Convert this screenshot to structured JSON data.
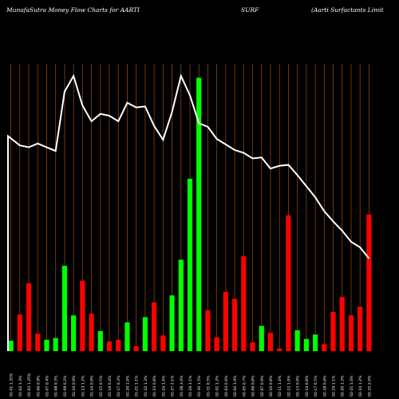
{
  "header": {
    "title_left": "MunafaSutra  Money Flow  Charts for AARTI",
    "title_mid": "SURF",
    "title_right": "(Aarti   Surfactants Limit"
  },
  "colors": {
    "background": "#000000",
    "grid": "#8B4513",
    "up": "#00FF00",
    "down": "#FF0000",
    "price_line": "#FFFFFF",
    "label": "#FFFFFF"
  },
  "chart_data": {
    "type": "bar",
    "title": "MunafaSutra Money Flow Charts for AARTI SURF (Aarti Surfactants Limit",
    "categories": [
      "01-01 1.35%",
      "01-02 1.3%",
      "01-03 1.25%",
      "01-06 0.9%",
      "01-07 0.4%",
      "01-08 0.3%",
      "01-09 0.2%",
      "01-10 0.9%",
      "01-13 1.2%",
      "01-14 0.9%",
      "01-15 0.5%",
      "01-16 0.4%",
      "01-17 0.3%",
      "01-20 1.0%",
      "01-21 1.1%",
      "01-22 1.3%",
      "01-23 0.8%",
      "01-24 1.4%",
      "01-27 2.1%",
      "01-28 3.0%",
      "01-29 3.1%",
      "01-30 1.5%",
      "01-31 0.5%",
      "02-01 1.2%",
      "02-03 0.6%",
      "02-04 1.0%",
      "02-05 0.7%",
      "02-06 0.8%",
      "02-07 0.9%",
      "02-10 0.8%",
      "02-11 1.4%",
      "02-12 1.0%",
      "02-13 0.9%",
      "02-14 0.8%",
      "02-17 0.5%",
      "02-18 0.6%",
      "02-19 1.1%",
      "02-20 1.3%",
      "02-21 1.0%",
      "02-24 1.2%",
      "02-25 2.0%"
    ],
    "series": [
      {
        "values": [
          12,
          42,
          78,
          20,
          13,
          15,
          98,
          41,
          81,
          43,
          23,
          11,
          13,
          33,
          5.5,
          39,
          56,
          18,
          64,
          105,
          198,
          314,
          47,
          16,
          68,
          60,
          109,
          10,
          29,
          21,
          3,
          156,
          24,
          14,
          19,
          8,
          45,
          62,
          41,
          51,
          157
        ],
        "directions": [
          "up",
          "down",
          "down",
          "down",
          "up",
          "up",
          "up",
          "up",
          "down",
          "down",
          "up",
          "down",
          "down",
          "up",
          "down",
          "up",
          "down",
          "down",
          "up",
          "up",
          "up",
          "up",
          "down",
          "down",
          "down",
          "down",
          "down",
          "down",
          "up",
          "down",
          "down",
          "down",
          "up",
          "up",
          "up",
          "down",
          "down",
          "down",
          "down",
          "down",
          "down"
        ]
      },
      {
        "type": "line",
        "values": [
          2232,
          2222,
          2220,
          2224,
          2220,
          2216,
          2280,
          2297,
          2265,
          2248,
          2256,
          2254,
          2248,
          2268,
          2263,
          2264,
          2243,
          2228,
          2258,
          2297,
          2276,
          2246,
          2242,
          2229,
          2223,
          2217,
          2214,
          2208,
          2209,
          2197,
          2200,
          2201,
          2190,
          2178,
          2166,
          2151,
          2140,
          2130,
          2118,
          2112,
          2100
        ]
      }
    ],
    "ylim": [
      0,
      330
    ],
    "price_ylim": [
      2000,
      2310
    ],
    "grid": true
  }
}
